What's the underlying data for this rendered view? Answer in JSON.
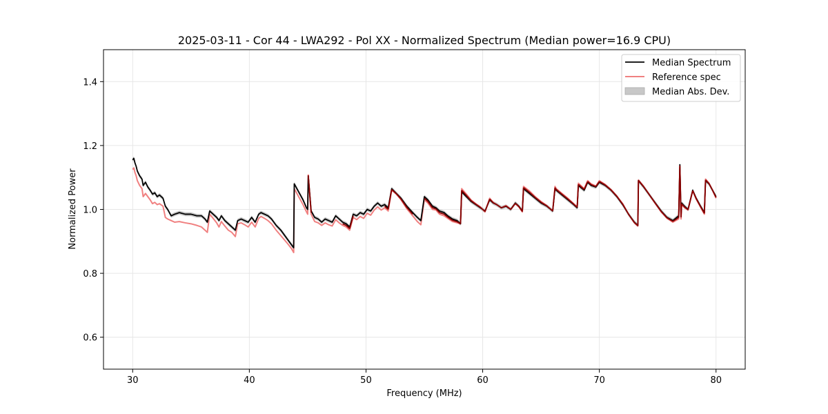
{
  "chart_data": {
    "type": "line",
    "title": "2025-03-11 - Cor 44 - LWA292 - Pol XX - Normalized Spectrum (Median power=16.9 CPU)",
    "xlabel": "Frequency (MHz)",
    "ylabel": "Normalized Power",
    "xlim": [
      27.5,
      82.5
    ],
    "ylim": [
      0.5,
      1.5
    ],
    "xticks": [
      30,
      40,
      50,
      60,
      70,
      80
    ],
    "yticks": [
      0.6,
      0.8,
      1.0,
      1.2,
      1.4
    ],
    "xtick_labels": [
      "30",
      "40",
      "50",
      "60",
      "70",
      "80"
    ],
    "ytick_labels": [
      "0.6",
      "0.8",
      "1.0",
      "1.2",
      "1.4"
    ],
    "grid": true,
    "legend_position": "top-right",
    "legend": [
      "Median Spectrum",
      "Reference spec",
      "Median Abs. Dev."
    ],
    "mad_width": 0.006,
    "colors": {
      "median": "#000000",
      "reference": "#f08080",
      "reference_dark": "#8b0000",
      "mad": "#c8c8c8"
    },
    "series": [
      {
        "name": "Median Spectrum",
        "x": [
          30.0,
          30.1,
          30.2,
          30.3,
          30.4,
          30.6,
          30.8,
          30.9,
          31.1,
          31.3,
          31.5,
          31.7,
          31.9,
          32.1,
          32.3,
          32.6,
          32.8,
          33.0,
          33.3,
          33.6,
          34.0,
          34.5,
          35.0,
          35.5,
          35.9,
          36.2,
          36.4,
          36.6,
          36.9,
          37.2,
          37.4,
          37.6,
          37.9,
          38.2,
          38.5,
          38.8,
          39.0,
          39.3,
          39.6,
          39.9,
          40.2,
          40.5,
          40.8,
          41.0,
          41.3,
          41.6,
          41.9,
          42.3,
          42.7,
          43.0,
          43.3,
          43.6,
          43.8,
          43.85,
          44.0,
          44.3,
          44.6,
          44.9,
          45.0,
          45.05,
          45.3,
          45.6,
          45.9,
          46.2,
          46.5,
          46.8,
          47.1,
          47.4,
          47.7,
          48.0,
          48.3,
          48.6,
          48.9,
          49.2,
          49.5,
          49.8,
          50.1,
          50.4,
          50.7,
          51.0,
          51.3,
          51.6,
          51.9,
          52.2,
          52.6,
          53.0,
          53.5,
          54.0,
          54.4,
          54.7,
          55.0,
          55.3,
          55.7,
          56.0,
          56.3,
          56.7,
          57.0,
          57.4,
          57.8,
          58.1,
          58.2,
          58.6,
          59.0,
          59.4,
          59.8,
          60.2,
          60.6,
          60.9,
          61.2,
          61.6,
          62.0,
          62.4,
          62.8,
          63.1,
          63.4,
          63.5,
          64.0,
          64.5,
          65.0,
          65.5,
          66.0,
          66.2,
          66.3,
          66.8,
          67.3,
          67.8,
          68.1,
          68.2,
          68.7,
          69.0,
          69.3,
          69.7,
          70.0,
          70.5,
          71.0,
          71.5,
          72.0,
          72.5,
          73.0,
          73.3,
          73.35,
          73.8,
          74.3,
          74.8,
          75.3,
          75.8,
          76.3,
          76.8,
          76.9,
          77.0,
          77.05,
          77.3,
          77.6,
          78.0,
          78.3,
          78.6,
          79.0,
          79.1,
          79.4,
          79.7,
          80.0
        ],
        "y": [
          1.155,
          1.16,
          1.145,
          1.135,
          1.12,
          1.105,
          1.095,
          1.075,
          1.085,
          1.07,
          1.06,
          1.048,
          1.052,
          1.04,
          1.045,
          1.035,
          1.01,
          1.0,
          0.98,
          0.985,
          0.99,
          0.985,
          0.985,
          0.98,
          0.98,
          0.97,
          0.96,
          0.995,
          0.985,
          0.975,
          0.965,
          0.98,
          0.965,
          0.955,
          0.945,
          0.935,
          0.965,
          0.97,
          0.965,
          0.96,
          0.975,
          0.96,
          0.985,
          0.99,
          0.985,
          0.98,
          0.97,
          0.95,
          0.935,
          0.92,
          0.905,
          0.89,
          0.88,
          1.08,
          1.07,
          1.05,
          1.03,
          1.005,
          1.0,
          1.105,
          0.995,
          0.975,
          0.97,
          0.96,
          0.97,
          0.965,
          0.96,
          0.98,
          0.97,
          0.96,
          0.955,
          0.945,
          0.985,
          0.98,
          0.99,
          0.985,
          1.0,
          0.995,
          1.01,
          1.02,
          1.01,
          1.015,
          1.005,
          1.065,
          1.05,
          1.035,
          1.01,
          0.99,
          0.975,
          0.965,
          1.04,
          1.03,
          1.01,
          1.005,
          0.995,
          0.99,
          0.98,
          0.97,
          0.965,
          0.955,
          1.055,
          1.04,
          1.025,
          1.015,
          1.005,
          0.995,
          1.03,
          1.02,
          1.015,
          1.005,
          1.01,
          1.0,
          1.02,
          1.01,
          0.995,
          1.065,
          1.05,
          1.035,
          1.02,
          1.01,
          0.995,
          1.065,
          1.06,
          1.045,
          1.03,
          1.015,
          1.005,
          1.075,
          1.06,
          1.085,
          1.075,
          1.07,
          1.085,
          1.075,
          1.06,
          1.04,
          1.015,
          0.985,
          0.96,
          0.95,
          1.09,
          1.07,
          1.045,
          1.02,
          0.995,
          0.975,
          0.965,
          0.98,
          1.14,
          0.98,
          1.02,
          1.01,
          1.0,
          1.06,
          1.035,
          1.015,
          0.99,
          1.09,
          1.08,
          1.06,
          1.04
        ]
      },
      {
        "name": "Reference spec",
        "x": [
          30.0,
          30.1,
          30.2,
          30.3,
          30.4,
          30.6,
          30.8,
          30.9,
          31.1,
          31.3,
          31.5,
          31.7,
          31.9,
          32.1,
          32.3,
          32.6,
          32.8,
          33.0,
          33.3,
          33.6,
          34.0,
          34.5,
          35.0,
          35.5,
          35.9,
          36.2,
          36.4,
          36.6,
          36.9,
          37.2,
          37.4,
          37.6,
          37.9,
          38.2,
          38.5,
          38.8,
          39.0,
          39.3,
          39.6,
          39.9,
          40.2,
          40.5,
          40.8,
          41.0,
          41.3,
          41.6,
          41.9,
          42.3,
          42.7,
          43.0,
          43.3,
          43.6,
          43.8,
          43.85,
          44.0,
          44.3,
          44.6,
          44.9,
          45.0,
          45.05,
          45.3,
          45.6,
          45.9,
          46.2,
          46.5,
          46.8,
          47.1,
          47.4,
          47.7,
          48.0,
          48.3,
          48.6,
          48.9,
          49.2,
          49.5,
          49.8,
          50.1,
          50.4,
          50.7,
          51.0,
          51.3,
          51.6,
          51.9,
          52.2,
          52.6,
          53.0,
          53.5,
          54.0,
          54.4,
          54.7,
          55.0,
          55.3,
          55.7,
          56.0,
          56.3,
          56.7,
          57.0,
          57.4,
          57.8,
          58.1,
          58.2,
          58.6,
          59.0,
          59.4,
          59.8,
          60.2,
          60.6,
          60.9,
          61.2,
          61.6,
          62.0,
          62.4,
          62.8,
          63.1,
          63.4,
          63.5,
          64.0,
          64.5,
          65.0,
          65.5,
          66.0,
          66.2,
          66.3,
          66.8,
          67.3,
          67.8,
          68.1,
          68.2,
          68.7,
          69.0,
          69.3,
          69.7,
          70.0,
          70.5,
          71.0,
          71.5,
          72.0,
          72.5,
          73.0,
          73.3,
          73.35,
          73.8,
          74.3,
          74.8,
          75.3,
          75.8,
          76.3,
          76.8,
          76.9,
          77.0,
          77.05,
          77.3,
          77.6,
          78.0,
          78.3,
          78.6,
          79.0,
          79.1,
          79.4,
          79.7,
          80.0
        ],
        "y": [
          1.125,
          1.13,
          1.115,
          1.105,
          1.09,
          1.075,
          1.065,
          1.04,
          1.05,
          1.04,
          1.03,
          1.018,
          1.022,
          1.015,
          1.018,
          1.01,
          0.975,
          0.97,
          0.965,
          0.96,
          0.962,
          0.958,
          0.955,
          0.95,
          0.945,
          0.935,
          0.928,
          0.985,
          0.972,
          0.958,
          0.945,
          0.962,
          0.948,
          0.935,
          0.928,
          0.915,
          0.955,
          0.958,
          0.952,
          0.945,
          0.96,
          0.945,
          0.972,
          0.978,
          0.972,
          0.965,
          0.955,
          0.935,
          0.918,
          0.905,
          0.892,
          0.878,
          0.865,
          1.065,
          1.055,
          1.035,
          1.015,
          0.992,
          0.985,
          1.108,
          0.985,
          0.962,
          0.958,
          0.95,
          0.958,
          0.952,
          0.948,
          0.968,
          0.958,
          0.95,
          0.945,
          0.935,
          0.975,
          0.968,
          0.978,
          0.972,
          0.988,
          0.982,
          0.998,
          1.008,
          0.998,
          1.005,
          0.995,
          1.06,
          1.048,
          1.03,
          1.002,
          0.98,
          0.962,
          0.952,
          1.03,
          1.02,
          1.0,
          0.998,
          0.985,
          0.98,
          0.972,
          0.962,
          0.958,
          0.955,
          1.065,
          1.048,
          1.03,
          1.018,
          1.008,
          0.992,
          1.035,
          1.022,
          1.015,
          1.005,
          1.012,
          1.0,
          1.018,
          1.008,
          0.992,
          1.072,
          1.058,
          1.04,
          1.025,
          1.012,
          0.995,
          1.072,
          1.065,
          1.05,
          1.035,
          1.018,
          1.008,
          1.082,
          1.065,
          1.09,
          1.08,
          1.073,
          1.09,
          1.078,
          1.062,
          1.042,
          1.018,
          0.985,
          0.958,
          0.948,
          1.092,
          1.072,
          1.045,
          1.018,
          0.992,
          0.972,
          0.96,
          0.97,
          1.135,
          0.97,
          1.015,
          1.005,
          0.998,
          1.058,
          1.032,
          1.012,
          0.985,
          1.095,
          1.082,
          1.06,
          1.035
        ]
      }
    ]
  }
}
